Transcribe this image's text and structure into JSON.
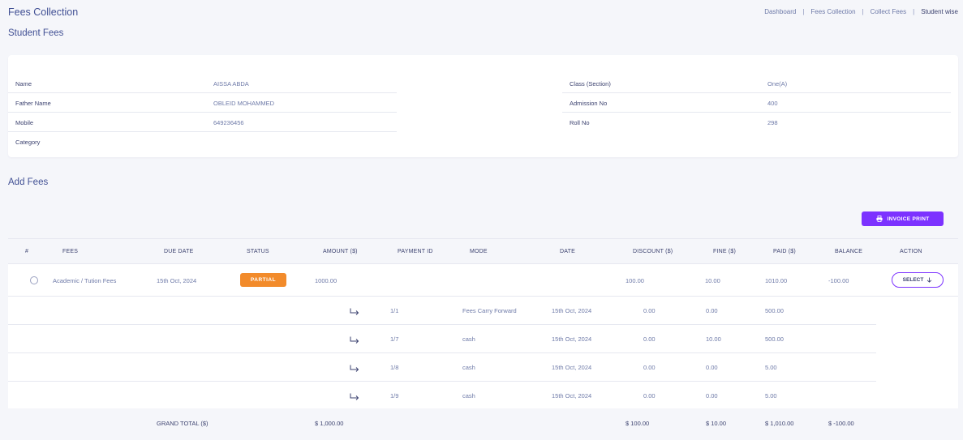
{
  "header": {
    "title": "Fees Collection",
    "breadcrumb": [
      "Dashboard",
      "Fees Collection",
      "Collect Fees",
      "Student wise"
    ]
  },
  "student_section_title": "Student Fees",
  "student": {
    "name_label": "Name",
    "name": "AISSA ABDA",
    "father_label": "Father Name",
    "father": "OBLEID MOHAMMED",
    "mobile_label": "Mobile",
    "mobile": "649236456",
    "category_label": "Category",
    "category": "",
    "class_label": "Class (Section)",
    "class": "One(A)",
    "admission_label": "Admission No",
    "admission": "400",
    "roll_label": "Roll No",
    "roll": "298"
  },
  "add_fees_title": "Add Fees",
  "invoice_button": "INVOICE PRINT",
  "table": {
    "headers": {
      "index": "#",
      "fees": "FEES",
      "due_date": "DUE DATE",
      "status": "STATUS",
      "amount": "AMOUNT ($)",
      "payment_id": "PAYMENT ID",
      "mode": "MODE",
      "date": "DATE",
      "discount": "DISCOUNT ($)",
      "fine": "FINE ($)",
      "paid": "PAID ($)",
      "balance": "BALANCE",
      "action": "ACTION"
    },
    "main_row": {
      "fees": "Academic / Tution Fees",
      "due_date": "15th Oct, 2024",
      "status": "PARTIAL",
      "amount": "1000.00",
      "discount": "100.00",
      "fine": "10.00",
      "paid": "1010.00",
      "balance": "-100.00",
      "action": "SELECT"
    },
    "payments": [
      {
        "payment_id": "1/1",
        "mode": "Fees Carry Forward",
        "date": "15th Oct, 2024",
        "discount": "0.00",
        "fine": "0.00",
        "paid": "500.00"
      },
      {
        "payment_id": "1/7",
        "mode": "cash",
        "date": "15th Oct, 2024",
        "discount": "0.00",
        "fine": "10.00",
        "paid": "500.00"
      },
      {
        "payment_id": "1/8",
        "mode": "cash",
        "date": "15th Oct, 2024",
        "discount": "0.00",
        "fine": "0.00",
        "paid": "5.00"
      },
      {
        "payment_id": "1/9",
        "mode": "cash",
        "date": "15th Oct, 2024",
        "discount": "0.00",
        "fine": "0.00",
        "paid": "5.00"
      }
    ],
    "totals": {
      "label": "GRAND TOTAL ($)",
      "amount": "$ 1,000.00",
      "discount": "$ 100.00",
      "fine": "$ 10.00",
      "paid": "$ 1,010.00",
      "balance": "$ -100.00"
    }
  },
  "colors": {
    "accent": "#7c32ff",
    "partial": "#f28b2b",
    "text": "#415094"
  }
}
